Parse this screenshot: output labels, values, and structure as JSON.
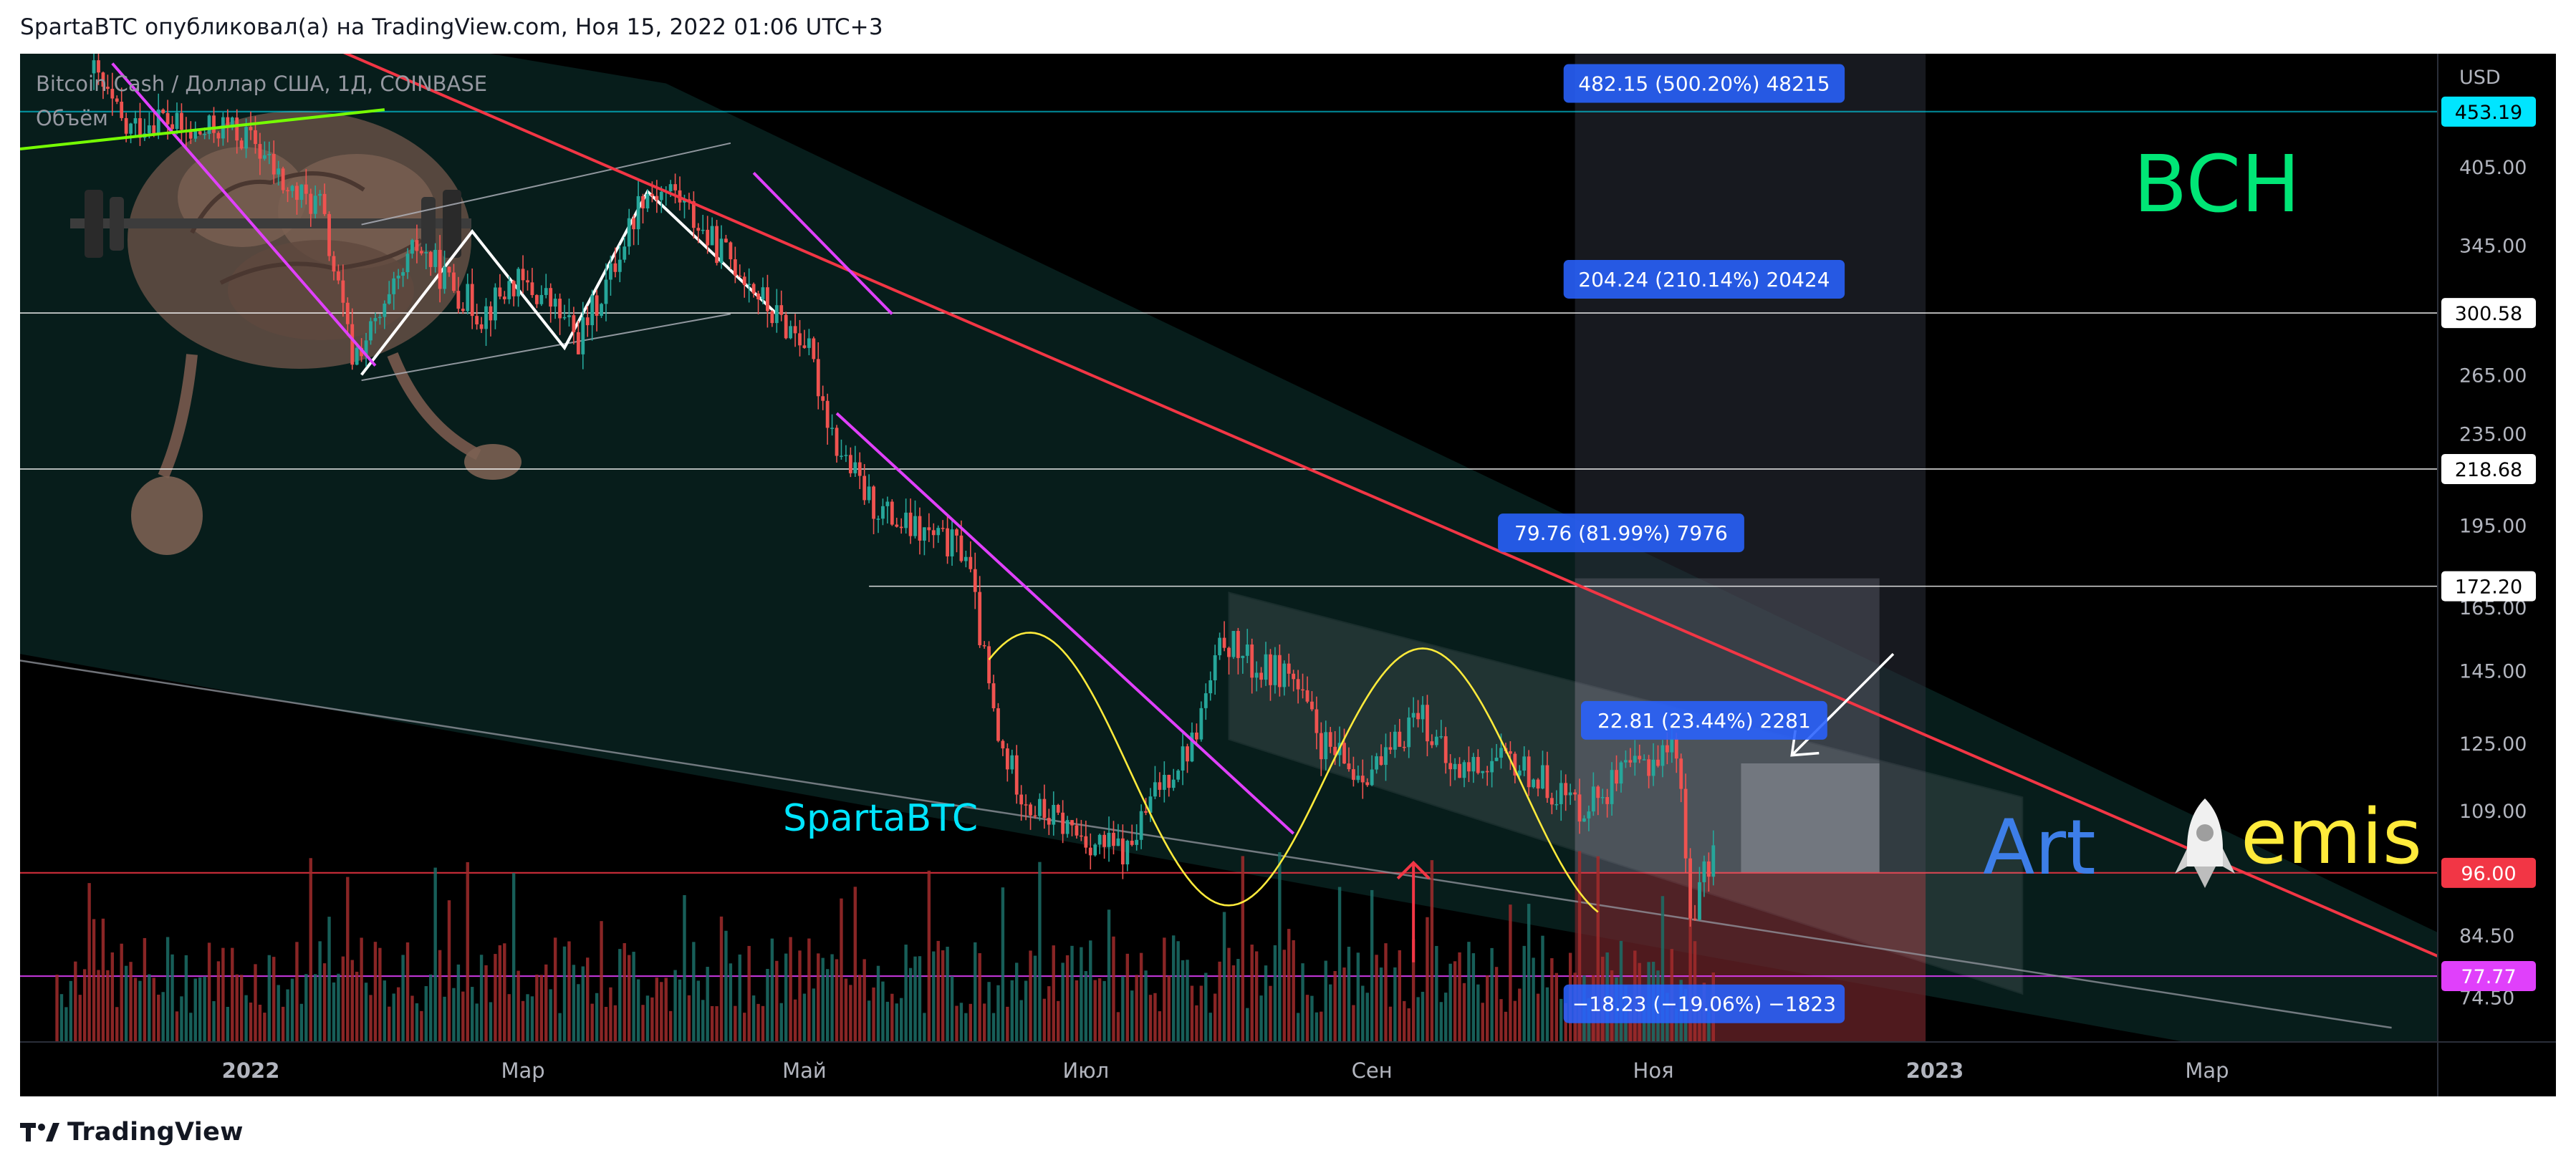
{
  "header": {
    "publish_line": "SpartaBTC опубликовал(а) на TradingView.com, Ноя 15, 2022 01:06 UTC+3"
  },
  "footer": {
    "brand": "TradingView",
    "logo_icon": "tradingview-logo-icon"
  },
  "overlay": {
    "watermark": "SpartaBTC",
    "symbol_big": "BCH",
    "art_word": "Art",
    "emis_word": "emis",
    "rocket_icon": "rocket-icon",
    "brain_icon": "brain-lifting-dumbbell-icon"
  },
  "colors": {
    "background": "#000000",
    "up": "#26a69a",
    "down": "#ef5350",
    "trendline_red": "#f23645",
    "trendline_magenta": "#e040fb",
    "wave_yellow": "#ffeb3b",
    "label_blue": "#2962ff",
    "cyan_price": "#00e5ff",
    "green_text": "#00e676"
  },
  "chart_data": {
    "type": "candlestick",
    "title": "Bitcoin Cash / Доллар США, 1Д, COINBASE",
    "volume_label": "Объём",
    "currency": "USD",
    "y_scale": "log",
    "ylim": [
      68,
      510
    ],
    "y_ticks": [
      {
        "value": 405.0,
        "label": "405.00"
      },
      {
        "value": 345.0,
        "label": "345.00"
      },
      {
        "value": 265.0,
        "label": "265.00"
      },
      {
        "value": 235.0,
        "label": "235.00"
      },
      {
        "value": 195.0,
        "label": "195.00"
      },
      {
        "value": 165.0,
        "label": "165.00"
      },
      {
        "value": 145.0,
        "label": "145.00"
      },
      {
        "value": 125.0,
        "label": "125.00"
      },
      {
        "value": 109.0,
        "label": "109.00"
      },
      {
        "value": 84.5,
        "label": "84.50"
      },
      {
        "value": 74.5,
        "label": "74.50"
      }
    ],
    "x_ticks": [
      "2022",
      "Мар",
      "Май",
      "Июл",
      "Сен",
      "Ноя",
      "2023",
      "Мар"
    ],
    "x_tick_dates": [
      "2022-01-01",
      "2022-03-01",
      "2022-05-01",
      "2022-07-01",
      "2022-09-01",
      "2022-11-01",
      "2023-01-01",
      "2023-03-01"
    ],
    "xlim": [
      "2021-11-12",
      "2023-04-20"
    ],
    "price_levels": [
      {
        "value": 453.19,
        "label": "453.19",
        "color": "#00e5ff",
        "style": "cyan"
      },
      {
        "value": 300.58,
        "label": "300.58",
        "color": "#ffffff",
        "style": "white"
      },
      {
        "value": 218.68,
        "label": "218.68",
        "color": "#ffffff",
        "style": "white"
      },
      {
        "value": 172.2,
        "label": "172.20",
        "color": "#ffffff",
        "style": "white"
      },
      {
        "value": 96.0,
        "label": "96.00",
        "color": "#f23645",
        "style": "red"
      },
      {
        "value": 77.77,
        "label": "77.77",
        "color": "#e040fb",
        "style": "magenta"
      }
    ],
    "measure_labels": [
      {
        "text": "482.15 (500.20%) 48215",
        "date": "2022-11-12",
        "value": 480
      },
      {
        "text": "204.24 (210.14%) 20424",
        "date": "2022-11-12",
        "value": 322
      },
      {
        "text": "79.76 (81.99%) 7976",
        "date": "2022-10-25",
        "value": 192
      },
      {
        "text": "22.81 (23.44%) 2281",
        "date": "2022-11-12",
        "value": 131
      },
      {
        "text": "−18.23 (−19.06%) −1823",
        "date": "2022-11-12",
        "value": 73.5
      }
    ],
    "price_path": [
      [
        "2021-11-28",
        490
      ],
      [
        "2021-12-05",
        435
      ],
      [
        "2021-12-12",
        450
      ],
      [
        "2021-12-19",
        430
      ],
      [
        "2021-12-26",
        440
      ],
      [
        "2022-01-02",
        425
      ],
      [
        "2022-01-09",
        385
      ],
      [
        "2022-01-16",
        375
      ],
      [
        "2022-01-23",
        275
      ],
      [
        "2022-01-30",
        300
      ],
      [
        "2022-02-06",
        345
      ],
      [
        "2022-02-13",
        320
      ],
      [
        "2022-02-20",
        300
      ],
      [
        "2022-02-27",
        320
      ],
      [
        "2022-03-06",
        310
      ],
      [
        "2022-03-13",
        285
      ],
      [
        "2022-03-20",
        325
      ],
      [
        "2022-03-27",
        385
      ],
      [
        "2022-04-03",
        385
      ],
      [
        "2022-04-10",
        350
      ],
      [
        "2022-04-17",
        330
      ],
      [
        "2022-04-24",
        300
      ],
      [
        "2022-05-01",
        285
      ],
      [
        "2022-05-08",
        230
      ],
      [
        "2022-05-15",
        205
      ],
      [
        "2022-05-22",
        195
      ],
      [
        "2022-05-29",
        190
      ],
      [
        "2022-06-05",
        185
      ],
      [
        "2022-06-12",
        125
      ],
      [
        "2022-06-19",
        110
      ],
      [
        "2022-06-26",
        106
      ],
      [
        "2022-07-03",
        102
      ],
      [
        "2022-07-10",
        100
      ],
      [
        "2022-07-17",
        115
      ],
      [
        "2022-07-24",
        125
      ],
      [
        "2022-07-31",
        155
      ],
      [
        "2022-08-07",
        145
      ],
      [
        "2022-08-14",
        145
      ],
      [
        "2022-08-21",
        125
      ],
      [
        "2022-08-28",
        118
      ],
      [
        "2022-09-04",
        120
      ],
      [
        "2022-09-11",
        135
      ],
      [
        "2022-09-18",
        118
      ],
      [
        "2022-09-25",
        120
      ],
      [
        "2022-10-02",
        120
      ],
      [
        "2022-10-09",
        115
      ],
      [
        "2022-10-16",
        110
      ],
      [
        "2022-10-23",
        115
      ],
      [
        "2022-10-30",
        120
      ],
      [
        "2022-11-06",
        125
      ],
      [
        "2022-11-09",
        88
      ],
      [
        "2022-11-14",
        100
      ]
    ]
  }
}
